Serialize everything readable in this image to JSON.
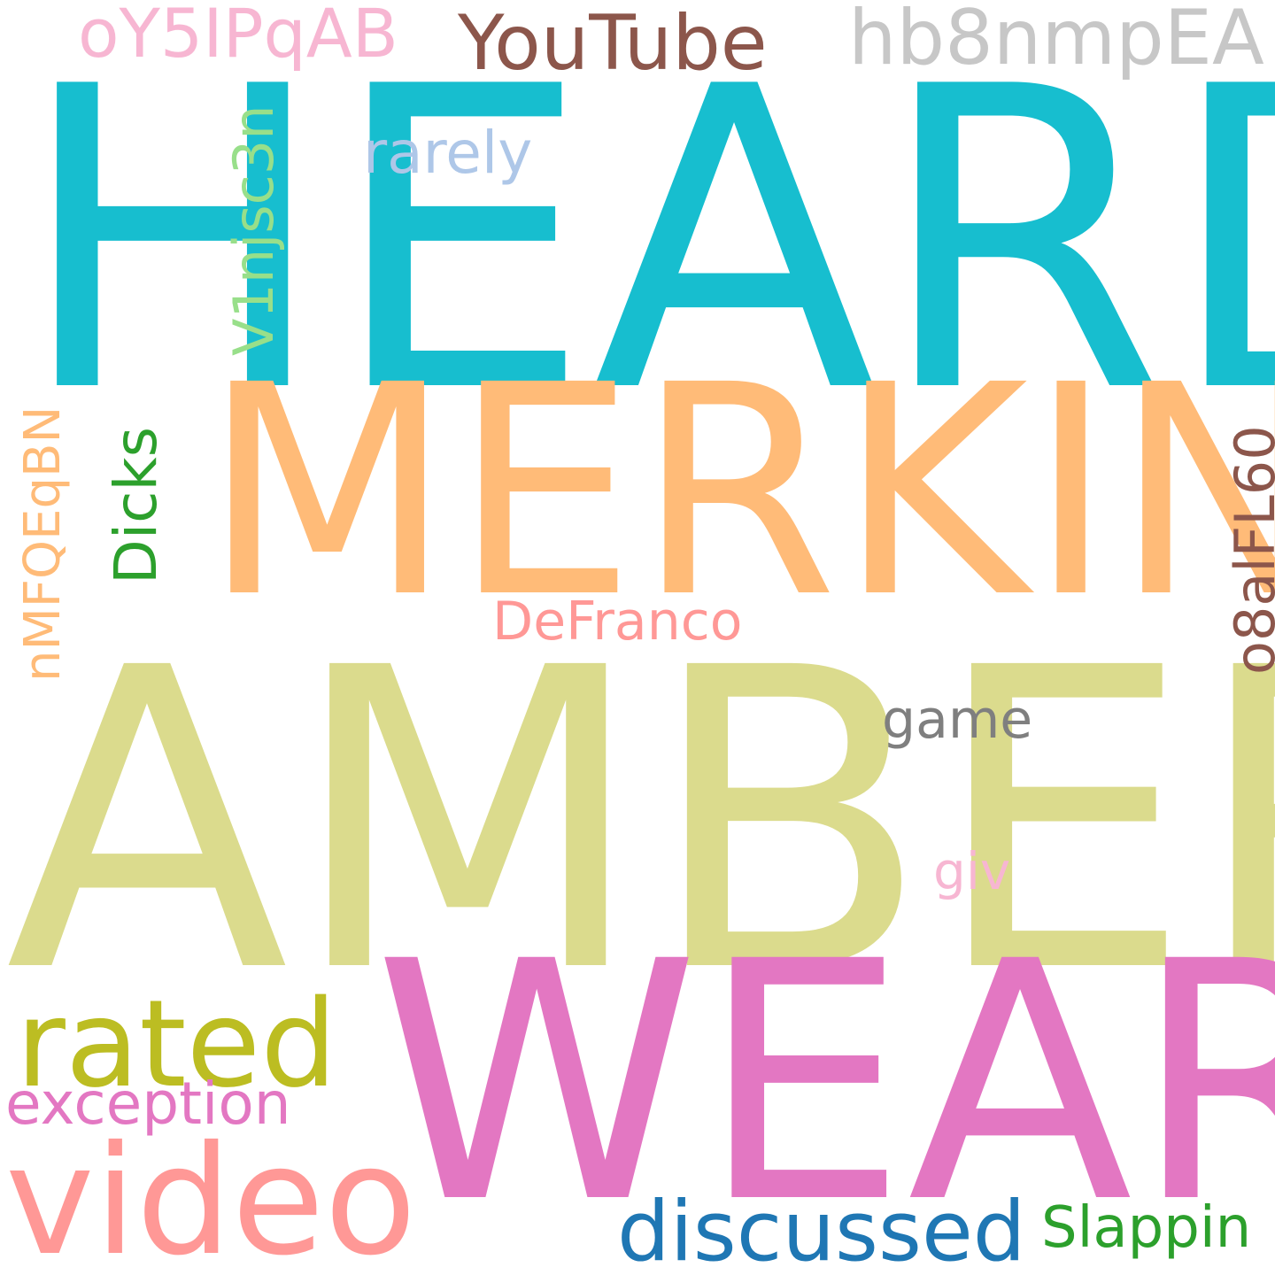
{
  "words": {
    "heard": {
      "text": "HEARD",
      "color": "#17becf"
    },
    "merkin": {
      "text": "MERKIN",
      "color": "#ffbb78"
    },
    "amber": {
      "text": "AMBER",
      "color": "#dbdb8d"
    },
    "wear": {
      "text": "WEAR",
      "color": "#e377c2"
    },
    "video": {
      "text": "video",
      "color": "#ff9896"
    },
    "rated": {
      "text": "rated",
      "color": "#bcbd22"
    },
    "exception": {
      "text": "exception",
      "color": "#e377c2"
    },
    "discussed": {
      "text": "discussed",
      "color": "#1f77b4"
    },
    "slappin": {
      "text": "Slappin",
      "color": "#2ca02c"
    },
    "youtube": {
      "text": "YouTube",
      "color": "#8c564b"
    },
    "hb8nmpea": {
      "text": "hb8nmpEA",
      "color": "#c7c7c7"
    },
    "oy5ipqab": {
      "text": "oY5IPqAB",
      "color": "#f7b6d2"
    },
    "rarely": {
      "text": "rarely",
      "color": "#aec7e8"
    },
    "defranco": {
      "text": "DeFranco",
      "color": "#ff9896"
    },
    "game": {
      "text": "game",
      "color": "#7f7f7f"
    },
    "giv": {
      "text": "giv",
      "color": "#f7b6d2"
    },
    "v1njsc3n": {
      "text": "V1njsc3n",
      "color": "#98df8a"
    },
    "nmfqeqbn": {
      "text": "nMFQEqBN",
      "color": "#ffbb78"
    },
    "dicks": {
      "text": "Dicks",
      "color": "#2ca02c"
    },
    "o8alfl60": {
      "text": "o8alFL60",
      "color": "#8c564b"
    }
  }
}
